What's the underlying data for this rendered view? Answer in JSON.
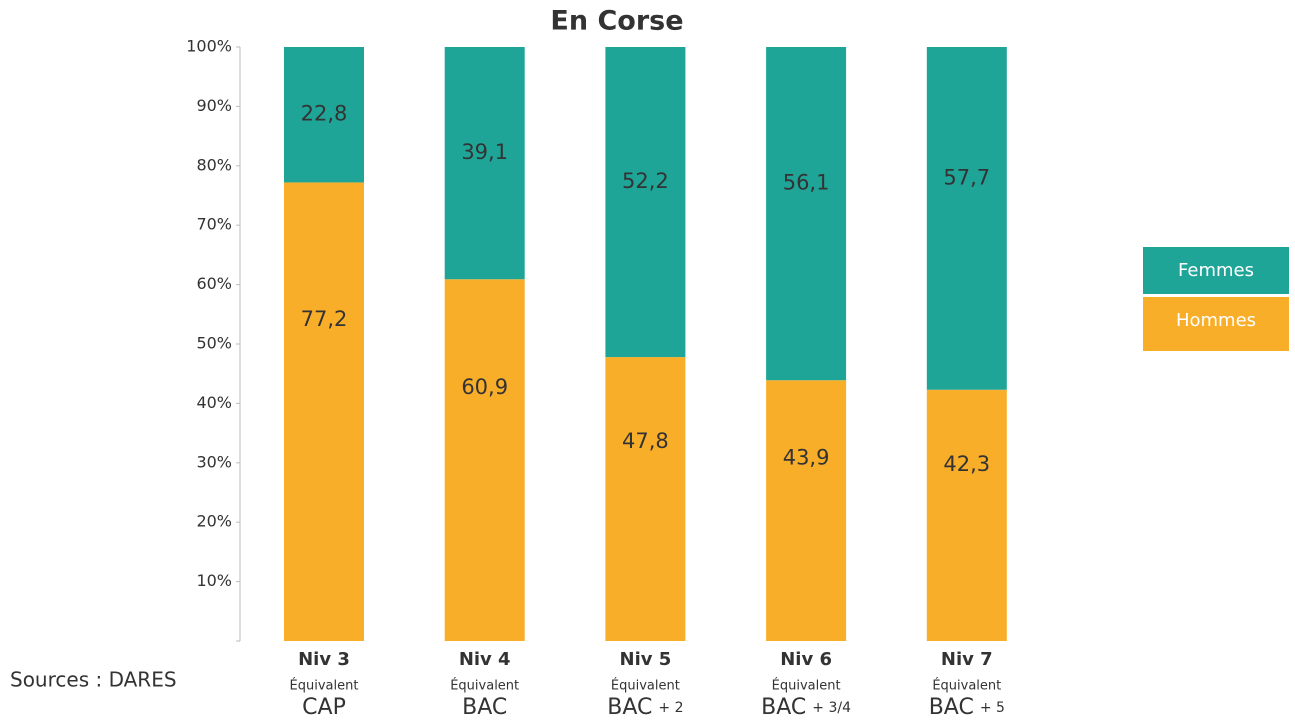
{
  "chart_data": {
    "type": "stacked_bar",
    "title": "En Corse",
    "categories": [
      "Niv 3",
      "Niv 4",
      "Niv 5",
      "Niv 6",
      "Niv 7"
    ],
    "category_subtitles": [
      "Équivalent",
      "Équivalent",
      "Équivalent",
      "Équivalent",
      "Équivalent"
    ],
    "category_equivalents": [
      "CAP",
      "BAC",
      "BAC",
      "BAC",
      "BAC"
    ],
    "category_suffixes": [
      null,
      null,
      "+ 2",
      "+ 3/4",
      "+ 5"
    ],
    "series": [
      {
        "name": "Hommes",
        "color": "#f9ae2a",
        "values": [
          77.2,
          60.9,
          47.8,
          43.9,
          42.3
        ],
        "value_labels": [
          "77,2",
          "60,9",
          "47,8",
          "43,9",
          "42,3"
        ]
      },
      {
        "name": "Femmes",
        "color": "#1fa598",
        "values": [
          22.8,
          39.1,
          52.2,
          56.1,
          57.7
        ],
        "value_labels": [
          "22,8",
          "39,1",
          "52,2",
          "56,1",
          "57,7"
        ]
      }
    ],
    "ylim": [
      0,
      100
    ],
    "yticks": [
      {
        "value": 10,
        "label": "10%"
      },
      {
        "value": 20,
        "label": "20%"
      },
      {
        "value": 30,
        "label": "30%"
      },
      {
        "value": 40,
        "label": "40%"
      },
      {
        "value": 50,
        "label": "50%"
      },
      {
        "value": 60,
        "label": "60%"
      },
      {
        "value": 70,
        "label": "70%"
      },
      {
        "value": 80,
        "label": "80%"
      },
      {
        "value": 90,
        "label": "90%"
      },
      {
        "value": 100,
        "label": "100%"
      }
    ],
    "source": "Sources : DARES",
    "legend": "right"
  }
}
